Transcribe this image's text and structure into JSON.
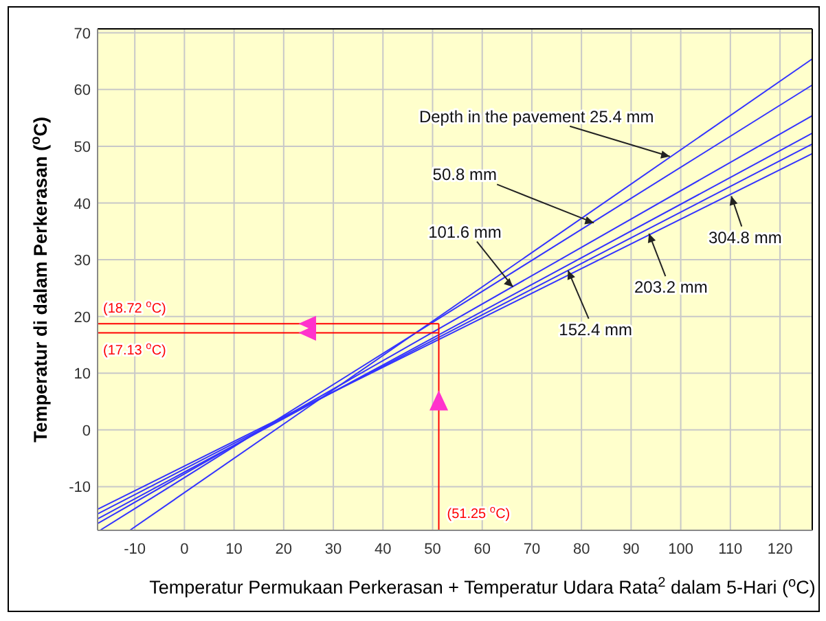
{
  "chart_data": {
    "type": "line",
    "xlabel": "Temperatur Permukaan Perkerasan + Temperatur Udara Rata$^{2}$ dalam 5-Hari ($^{o}$C)",
    "ylabel": "Temperatur di dalam Perkerasan ($^{o}$C)",
    "xlim": [
      -17.5,
      126.5
    ],
    "ylim": [
      -17.7,
      70.7
    ],
    "xticks": [
      -10,
      0,
      10,
      20,
      30,
      40,
      50,
      60,
      70,
      80,
      90,
      100,
      110,
      120
    ],
    "yticks": [
      -10,
      0,
      10,
      20,
      30,
      40,
      50,
      60,
      70
    ],
    "grid": true,
    "marker": "none",
    "line_style": "solid",
    "series": [
      {
        "color": "#3333ff",
        "x": [
          -11,
          126.5
        ],
        "values": [
          -17.7,
          65.4
        ]
      },
      {
        "color": "#3333ff",
        "x": [
          -17,
          126.5
        ],
        "values": [
          -17.7,
          60.8
        ]
      },
      {
        "color": "#3333ff",
        "x": [
          -17.5,
          126.5
        ],
        "values": [
          -16.5,
          55.4
        ]
      },
      {
        "color": "#3333ff",
        "x": [
          -17.5,
          126.5
        ],
        "values": [
          -15.7,
          52.3
        ]
      },
      {
        "color": "#3333ff",
        "x": [
          -17.5,
          126.5
        ],
        "values": [
          -14.8,
          50.4
        ]
      },
      {
        "color": "#3333ff",
        "x": [
          -17.5,
          126.5
        ],
        "values": [
          -14,
          48.7
        ]
      },
      {
        "color": "#ff0000",
        "x": [
          -17.5,
          51.25
        ],
        "values": [
          18.72,
          18.72
        ]
      },
      {
        "color": "#ff0000",
        "x": [
          -17.5,
          51.25
        ],
        "values": [
          17.13,
          17.13
        ]
      },
      {
        "color": "#ff0000",
        "x": [
          51.25,
          51.25
        ],
        "values": [
          -17.7,
          18.72
        ]
      }
    ],
    "annotations": [
      {
        "text": "Depth in the pavement  25.4 mm",
        "x": 97.8,
        "y": 48.2
      },
      {
        "text": "50.8 mm",
        "x": 82.5,
        "y": 36.5
      },
      {
        "text": "101.6 mm",
        "x": 66.2,
        "y": 25.2
      },
      {
        "text": "152.4 mm",
        "x": 77.3,
        "y": 28.1
      },
      {
        "text": "203.2 mm",
        "x": 93.6,
        "y": 34.6
      },
      {
        "text": "304.8 mm",
        "x": 110.2,
        "y": 41.2
      },
      {
        "text": "(18.72 $^{o}$C)",
        "x": -17.5,
        "y": 18.72
      },
      {
        "text": "(17.13 $^{o}$C)",
        "x": -17.5,
        "y": 17.13
      },
      {
        "text": "(51.25 $^{o}$C)",
        "x": 51.25,
        "y": -17.7
      }
    ]
  }
}
